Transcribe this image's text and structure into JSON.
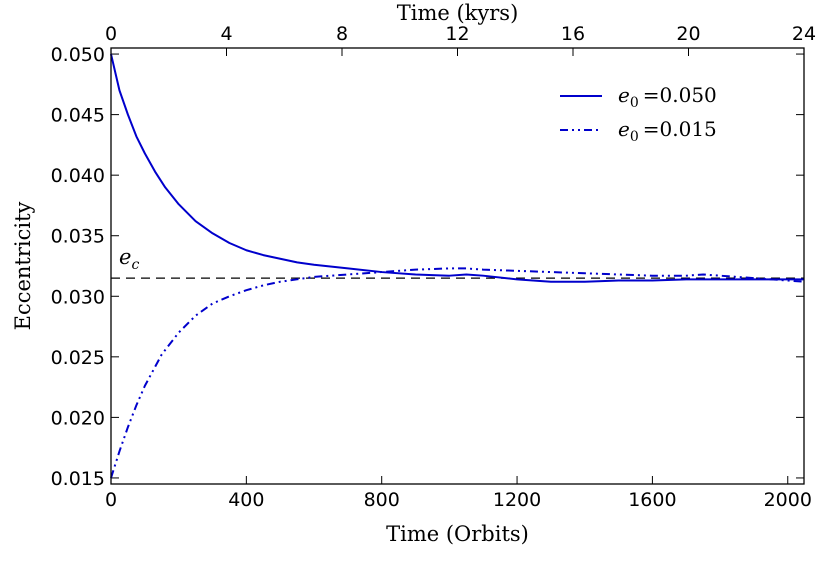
{
  "chart_data": {
    "type": "line",
    "title": "",
    "xlabel": "Time (Orbits)",
    "ylabel": "Eccentricity",
    "x2label": "Time (kyrs)",
    "xlim": [
      0,
      2048
    ],
    "ylim": [
      0.0145,
      0.0505
    ],
    "x2lim": [
      0,
      24
    ],
    "xticks": [
      "0",
      "400",
      "800",
      "1200",
      "1600",
      "2000"
    ],
    "xtick_values": [
      0,
      400,
      800,
      1200,
      1600,
      2000
    ],
    "yticks": [
      "0.015",
      "0.020",
      "0.025",
      "0.030",
      "0.035",
      "0.040",
      "0.045",
      "0.050"
    ],
    "ytick_values": [
      0.015,
      0.02,
      0.025,
      0.03,
      0.035,
      0.04,
      0.045,
      0.05
    ],
    "x2ticks": [
      "0",
      "4",
      "8",
      "12",
      "16",
      "20",
      "24"
    ],
    "x2tick_values": [
      0,
      4,
      8,
      12,
      16,
      20,
      24
    ],
    "grid": false,
    "legend_position": "top-right",
    "reference_line": {
      "label": "e_c",
      "label_main": "e",
      "label_sub": "c",
      "y": 0.0315,
      "style": "dashed",
      "color": "#000000"
    },
    "series": [
      {
        "name": "e_0 = 0.050",
        "label_main": "e",
        "label_sub": "0",
        "label_value": "=0.050",
        "style": "solid",
        "color": "#0000cc",
        "x": [
          0,
          25,
          50,
          75,
          100,
          130,
          160,
          200,
          250,
          300,
          350,
          400,
          450,
          500,
          550,
          600,
          700,
          800,
          900,
          1000,
          1050,
          1100,
          1200,
          1300,
          1400,
          1500,
          1600,
          1700,
          1800,
          1900,
          2000,
          2048
        ],
        "y": [
          0.05,
          0.047,
          0.045,
          0.0432,
          0.0418,
          0.0403,
          0.039,
          0.0376,
          0.0362,
          0.0352,
          0.0344,
          0.0338,
          0.0334,
          0.0331,
          0.0328,
          0.0326,
          0.0323,
          0.032,
          0.0318,
          0.0317,
          0.0318,
          0.0317,
          0.0314,
          0.0312,
          0.0312,
          0.0313,
          0.0313,
          0.0314,
          0.0314,
          0.0314,
          0.0314,
          0.0314
        ]
      },
      {
        "name": "e_0 = 0.015",
        "label_main": "e",
        "label_sub": "0",
        "label_value": "=0.015",
        "style": "dashdotdot",
        "color": "#0000cc",
        "x": [
          0,
          25,
          50,
          75,
          100,
          150,
          200,
          250,
          300,
          350,
          400,
          450,
          500,
          550,
          600,
          700,
          800,
          900,
          1000,
          1050,
          1100,
          1200,
          1300,
          1400,
          1500,
          1600,
          1700,
          1750,
          1800,
          1900,
          2000,
          2048
        ],
        "y": [
          0.015,
          0.0172,
          0.0192,
          0.021,
          0.0226,
          0.0252,
          0.027,
          0.0284,
          0.0294,
          0.03,
          0.0305,
          0.0309,
          0.0312,
          0.0314,
          0.0316,
          0.0318,
          0.032,
          0.0322,
          0.0323,
          0.0323,
          0.0322,
          0.0321,
          0.032,
          0.0319,
          0.0318,
          0.0317,
          0.0317,
          0.0318,
          0.0317,
          0.0315,
          0.0313,
          0.0312
        ]
      }
    ]
  }
}
